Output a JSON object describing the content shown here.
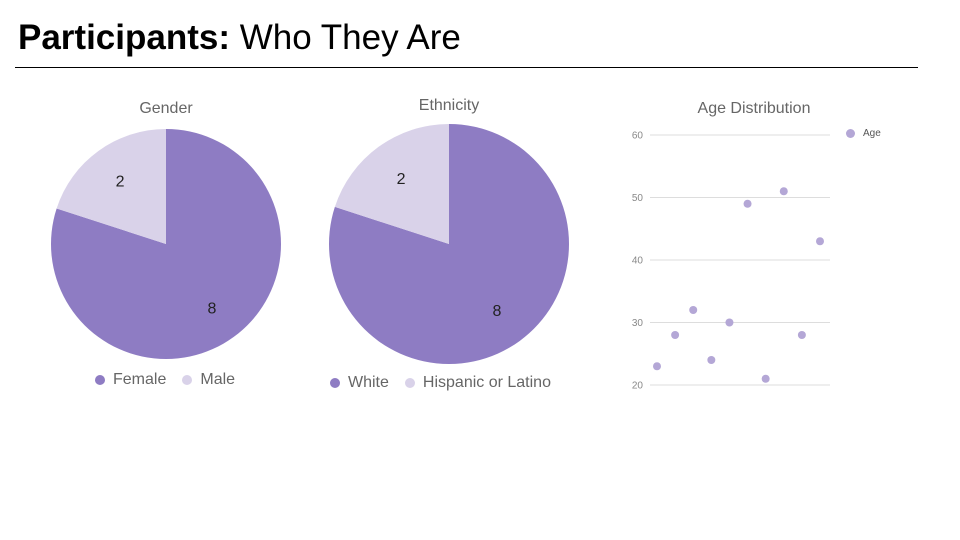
{
  "slide": {
    "title_bold": "Participants:",
    "title_rest": " Who They Are"
  },
  "colors": {
    "primary": "#8e7cc3",
    "secondary": "#d9d2e9",
    "grid": "#dddddd",
    "axis_text": "#888888"
  },
  "chart_data": [
    {
      "type": "pie",
      "title": "Gender",
      "categories": [
        "Female",
        "Male"
      ],
      "values": [
        8,
        2
      ],
      "legend": "bottom"
    },
    {
      "type": "pie",
      "title": "Ethnicity",
      "categories": [
        "White",
        "Hispanic or Latino"
      ],
      "values": [
        8,
        2
      ],
      "legend": "bottom"
    },
    {
      "type": "scatter",
      "title": "Age Distribution",
      "series": [
        {
          "name": "Age",
          "y": [
            23,
            28,
            32,
            24,
            30,
            49,
            21,
            51,
            28,
            43
          ]
        }
      ],
      "ylim": [
        20,
        60
      ],
      "yticks": [
        20,
        30,
        40,
        50,
        60
      ],
      "grid": true,
      "legend": "top-right"
    }
  ]
}
